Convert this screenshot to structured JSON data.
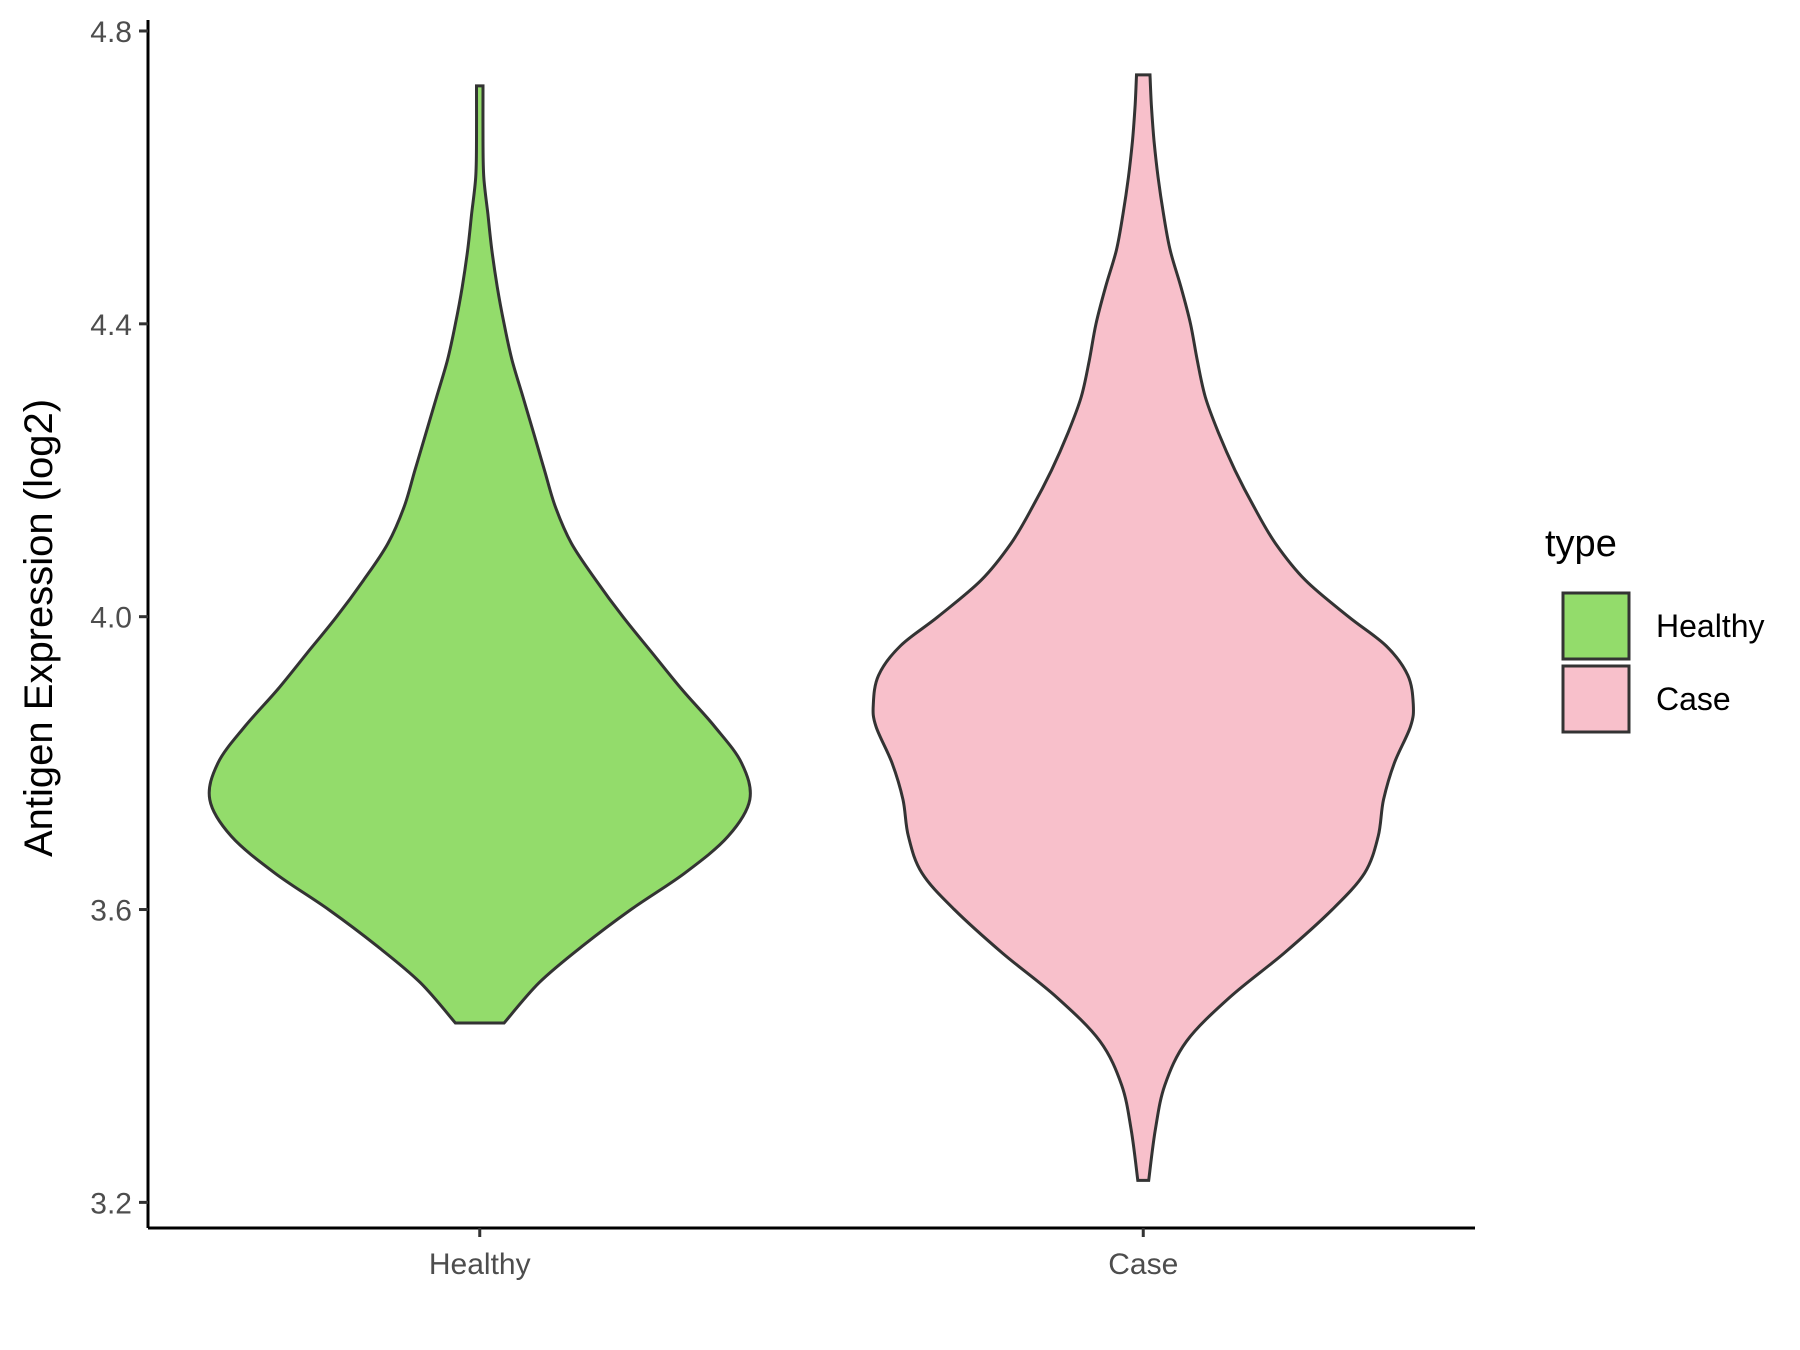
{
  "chart_data": {
    "type": "violin",
    "title": "",
    "xlabel": "",
    "ylabel": "Antigen Expression (log2)",
    "ylim": [
      3.165,
      4.815
    ],
    "yticks": [
      3.2,
      3.6,
      4.0,
      4.4,
      4.8
    ],
    "ytick_labels": [
      "3.2",
      "3.6",
      "4.0",
      "4.4",
      "4.8"
    ],
    "categories": [
      "Healthy",
      "Case"
    ],
    "grid": false,
    "legend": {
      "title": "type",
      "position": "right",
      "entries": [
        "Healthy",
        "Case"
      ]
    },
    "series": [
      {
        "category": "Healthy",
        "color": "#93DC6B",
        "min": 3.445,
        "max": 4.725,
        "density": [
          [
            3.445,
            0.09
          ],
          [
            3.5,
            0.22
          ],
          [
            3.55,
            0.38
          ],
          [
            3.6,
            0.56
          ],
          [
            3.65,
            0.76
          ],
          [
            3.7,
            0.92
          ],
          [
            3.75,
            1.0
          ],
          [
            3.8,
            0.97
          ],
          [
            3.85,
            0.87
          ],
          [
            3.9,
            0.75
          ],
          [
            3.95,
            0.64
          ],
          [
            4.0,
            0.53
          ],
          [
            4.05,
            0.43
          ],
          [
            4.1,
            0.34
          ],
          [
            4.15,
            0.28
          ],
          [
            4.2,
            0.24
          ],
          [
            4.25,
            0.2
          ],
          [
            4.3,
            0.16
          ],
          [
            4.35,
            0.12
          ],
          [
            4.4,
            0.09
          ],
          [
            4.45,
            0.065
          ],
          [
            4.5,
            0.045
          ],
          [
            4.55,
            0.03
          ],
          [
            4.6,
            0.015
          ],
          [
            4.65,
            0.012
          ],
          [
            4.725,
            0.012
          ]
        ]
      },
      {
        "category": "Case",
        "color": "#F8C0CB",
        "min": 3.23,
        "max": 4.74,
        "density": [
          [
            3.23,
            0.02
          ],
          [
            3.3,
            0.045
          ],
          [
            3.36,
            0.08
          ],
          [
            3.42,
            0.16
          ],
          [
            3.48,
            0.32
          ],
          [
            3.54,
            0.52
          ],
          [
            3.6,
            0.7
          ],
          [
            3.65,
            0.82
          ],
          [
            3.7,
            0.87
          ],
          [
            3.75,
            0.89
          ],
          [
            3.8,
            0.93
          ],
          [
            3.85,
            0.99
          ],
          [
            3.88,
            1.0
          ],
          [
            3.92,
            0.98
          ],
          [
            3.96,
            0.9
          ],
          [
            4.0,
            0.76
          ],
          [
            4.05,
            0.6
          ],
          [
            4.1,
            0.49
          ],
          [
            4.15,
            0.41
          ],
          [
            4.2,
            0.34
          ],
          [
            4.25,
            0.28
          ],
          [
            4.3,
            0.23
          ],
          [
            4.35,
            0.2
          ],
          [
            4.4,
            0.175
          ],
          [
            4.45,
            0.14
          ],
          [
            4.5,
            0.1
          ],
          [
            4.55,
            0.075
          ],
          [
            4.6,
            0.055
          ],
          [
            4.65,
            0.04
          ],
          [
            4.7,
            0.03
          ],
          [
            4.74,
            0.025
          ]
        ]
      }
    ]
  }
}
